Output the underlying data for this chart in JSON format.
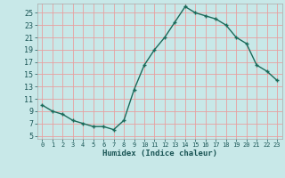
{
  "x": [
    0,
    1,
    2,
    3,
    4,
    5,
    6,
    7,
    8,
    9,
    10,
    11,
    12,
    13,
    14,
    15,
    16,
    17,
    18,
    19,
    20,
    21,
    22,
    23
  ],
  "y": [
    10,
    9,
    8.5,
    7.5,
    7,
    6.5,
    6.5,
    6,
    7.5,
    12.5,
    16.5,
    19,
    21,
    23.5,
    26,
    25,
    24.5,
    24,
    23,
    21,
    20,
    16.5,
    15.5,
    14
  ],
  "line_color": "#1a6b5a",
  "marker": "+",
  "bg_color": "#c8e8e8",
  "grid_color": "#e8a0a0",
  "xlabel": "Humidex (Indice chaleur)",
  "xlim": [
    -0.5,
    23.5
  ],
  "ylim": [
    4.5,
    26.5
  ],
  "yticks": [
    5,
    7,
    9,
    11,
    13,
    15,
    17,
    19,
    21,
    23,
    25
  ],
  "xticks": [
    0,
    1,
    2,
    3,
    4,
    5,
    6,
    7,
    8,
    9,
    10,
    11,
    12,
    13,
    14,
    15,
    16,
    17,
    18,
    19,
    20,
    21,
    22,
    23
  ],
  "xtick_labels": [
    "0",
    "1",
    "2",
    "3",
    "4",
    "5",
    "6",
    "7",
    "8",
    "9",
    "10",
    "11",
    "12",
    "13",
    "14",
    "15",
    "16",
    "17",
    "18",
    "19",
    "20",
    "21",
    "22",
    "23"
  ],
  "linewidth": 1.0,
  "markersize": 3.5,
  "tick_color": "#1a5555",
  "label_color": "#1a5555",
  "xlabel_fontsize": 6.5,
  "ytick_fontsize": 6.0,
  "xtick_fontsize": 5.0
}
